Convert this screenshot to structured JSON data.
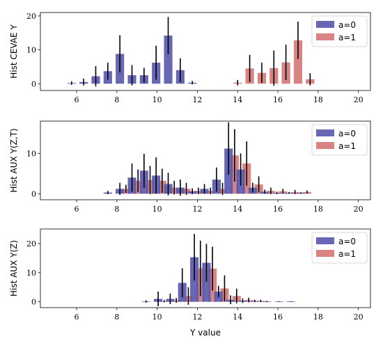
{
  "colors": {
    "a0": "#5a5aad",
    "a1": "#d47a78"
  },
  "chart_data": [
    {
      "type": "bar",
      "ylabel": "Hist CEVAE Y",
      "xlabel": "",
      "xlim": [
        4.2,
        20.6
      ],
      "ylim": [
        -2,
        21
      ],
      "xticks": [
        6,
        8,
        10,
        12,
        14,
        16,
        18,
        20
      ],
      "yticks": [
        0,
        10,
        20
      ],
      "legend": [
        "a=0",
        "a=1"
      ],
      "legend_position": "top-right",
      "grid": false,
      "series": [
        {
          "name": "a=0",
          "x": [
            5.75,
            6.35,
            6.95,
            7.55,
            8.15,
            8.75,
            9.35,
            9.95,
            10.55,
            11.15,
            11.75
          ],
          "values": [
            0.2,
            0.5,
            2.2,
            3.7,
            8.8,
            2.5,
            2.5,
            6.2,
            14.2,
            4.0,
            0.3
          ],
          "errors": [
            0.5,
            1.0,
            3.0,
            2.5,
            5.5,
            3.0,
            2.2,
            5.0,
            5.5,
            3.5,
            0.5
          ]
        },
        {
          "name": "a=1",
          "x": [
            14.0,
            14.6,
            15.2,
            15.8,
            16.4,
            17.0,
            17.6
          ],
          "values": [
            0.3,
            4.5,
            3.2,
            4.6,
            6.3,
            12.8,
            1.3
          ],
          "errors": [
            0.8,
            4.0,
            3.0,
            5.2,
            5.2,
            5.5,
            1.8
          ]
        }
      ]
    },
    {
      "type": "bar",
      "ylabel": "Hist AUX Y(Z,T)",
      "xlabel": "",
      "xlim": [
        4.2,
        20.6
      ],
      "ylim": [
        -1.5,
        18
      ],
      "xticks": [
        6,
        8,
        10,
        12,
        14,
        16,
        18,
        20
      ],
      "yticks": [
        0,
        10
      ],
      "legend": [
        "a=0",
        "a=1"
      ],
      "legend_position": "top-right",
      "grid": false,
      "series": [
        {
          "name": "a=0",
          "x": [
            7.55,
            8.15,
            8.75,
            9.35,
            9.95,
            10.55,
            11.15,
            11.75,
            12.35,
            12.95,
            13.55,
            14.15,
            14.75,
            15.35,
            15.95,
            16.55,
            17.15
          ],
          "values": [
            0.3,
            1.2,
            4.0,
            5.7,
            4.5,
            2.4,
            1.5,
            0.6,
            1.2,
            3.5,
            11.2,
            6.0,
            1.5,
            0.5,
            0.2,
            0.2,
            0.2
          ],
          "errors": [
            0.4,
            1.5,
            3.5,
            4.2,
            4.5,
            2.8,
            2.0,
            0.7,
            1.2,
            3.0,
            6.5,
            4.0,
            1.2,
            0.5,
            0.3,
            0.2,
            0.2
          ]
        },
        {
          "name": "a=1",
          "x": [
            8.45,
            9.05,
            9.65,
            10.25,
            10.85,
            11.45,
            12.05,
            12.65,
            13.25,
            13.85,
            14.45,
            15.05,
            15.65,
            16.25,
            16.85,
            17.45
          ],
          "values": [
            1.2,
            3.2,
            3.4,
            3.2,
            1.5,
            1.2,
            0.7,
            0.7,
            1.2,
            9.5,
            7.5,
            2.3,
            0.7,
            0.6,
            0.4,
            0.4
          ],
          "errors": [
            1.0,
            2.8,
            3.5,
            3.0,
            1.7,
            1.5,
            0.8,
            0.8,
            1.5,
            6.5,
            5.5,
            2.0,
            0.8,
            0.6,
            0.5,
            0.4
          ]
        }
      ]
    },
    {
      "type": "bar",
      "ylabel": "Hist AUX Y(Z)",
      "xlabel": "Y value",
      "xlim": [
        4.2,
        20.6
      ],
      "ylim": [
        -2,
        25
      ],
      "xticks": [
        6,
        8,
        10,
        12,
        14,
        16,
        18,
        20
      ],
      "yticks": [
        0,
        10,
        20
      ],
      "legend": [
        "a=0",
        "a=1"
      ],
      "legend_position": "top-right",
      "grid": false,
      "series": [
        {
          "name": "a=0",
          "x": [
            9.45,
            10.05,
            10.65,
            11.25,
            11.85,
            12.45,
            13.05,
            13.65,
            14.25,
            14.85,
            15.45,
            16.05,
            16.65
          ],
          "values": [
            0.1,
            1.0,
            1.0,
            6.5,
            15.3,
            13.4,
            3.5,
            0.7,
            0.4,
            0.3,
            0.1,
            0.1,
            0.1
          ],
          "errors": [
            0.4,
            2.5,
            1.8,
            5.0,
            8.0,
            6.5,
            2.0,
            1.5,
            0.8,
            0.4,
            0.2,
            0.1,
            0.1
          ]
        },
        {
          "name": "a=1",
          "x": [
            10.35,
            10.95,
            11.55,
            12.15,
            12.75,
            13.35,
            13.95,
            14.55,
            15.15
          ],
          "values": [
            0.2,
            0.5,
            2.0,
            11.5,
            11.4,
            4.6,
            2.0,
            0.6,
            0.3
          ],
          "errors": [
            0.4,
            0.8,
            3.0,
            9.5,
            7.5,
            4.5,
            2.5,
            0.8,
            0.4
          ]
        }
      ]
    }
  ]
}
